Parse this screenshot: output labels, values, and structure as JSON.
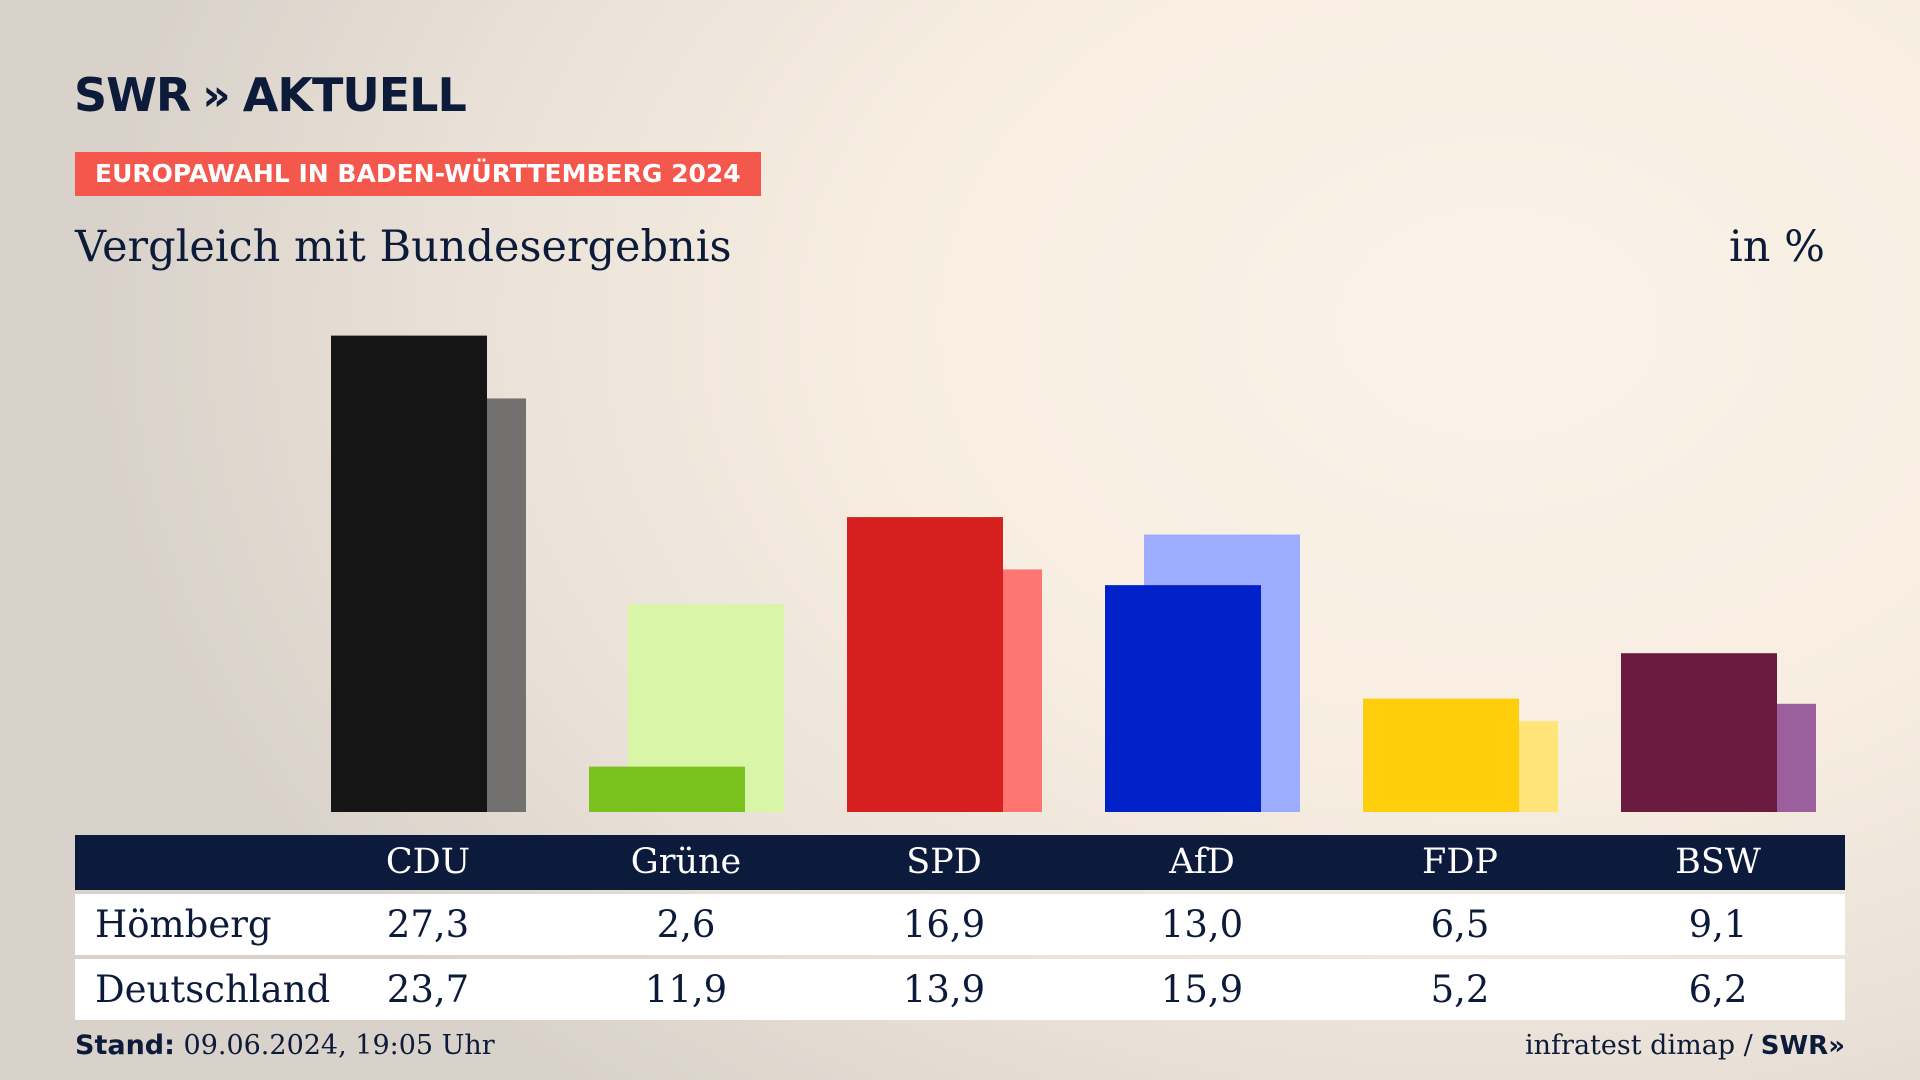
{
  "header": {
    "logo_swr": "SWR",
    "logo_chevrons": "»",
    "logo_aktuell": "AKTUELL",
    "banner": "EUROPAWAHL IN BADEN-WÜRTTEMBERG 2024",
    "subtitle": "Vergleich mit Bundesergebnis",
    "unit": "in %"
  },
  "chart_data": {
    "type": "bar",
    "categories": [
      "CDU",
      "Grüne",
      "SPD",
      "AfD",
      "FDP",
      "BSW"
    ],
    "series": [
      {
        "name": "Hömberg",
        "values": [
          27.3,
          2.6,
          16.9,
          13.0,
          6.5,
          9.1
        ]
      },
      {
        "name": "Deutschland",
        "values": [
          23.7,
          11.9,
          13.9,
          15.9,
          5.2,
          6.2
        ]
      }
    ],
    "colors": {
      "primary": [
        "#151515",
        "#7ac11e",
        "#d61f1f",
        "#0022c8",
        "#ffcf0e",
        "#6b1a40"
      ],
      "secondary": [
        "#737070",
        "#d8f5a8",
        "#ff7572",
        "#9eacff",
        "#ffe577",
        "#9a5f9c"
      ]
    },
    "ylim": [
      0,
      30
    ]
  },
  "table": {
    "headers": [
      "CDU",
      "Grüne",
      "SPD",
      "AfD",
      "FDP",
      "BSW"
    ],
    "rows": [
      {
        "label": "Hömberg",
        "values": [
          "27,3",
          "2,6",
          "16,9",
          "13,0",
          "6,5",
          "9,1"
        ]
      },
      {
        "label": "Deutschland",
        "values": [
          "23,7",
          "11,9",
          "13,9",
          "15,9",
          "5,2",
          "6,2"
        ]
      }
    ]
  },
  "footer": {
    "stand_label": "Stand:",
    "stand_value": "09.06.2024, 19:05 Uhr",
    "source": "infratest dimap /",
    "source_logo": "SWR»"
  }
}
